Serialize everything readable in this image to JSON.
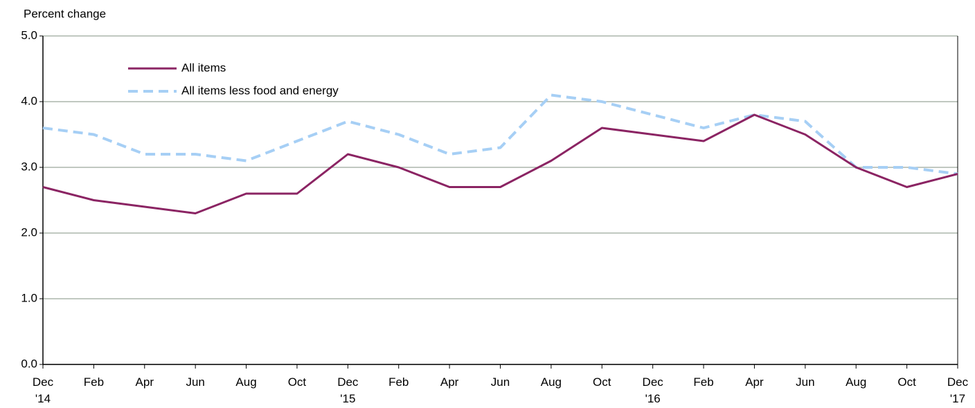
{
  "chart_data": {
    "type": "line",
    "y_label": "Percent change",
    "categories": [
      "Dec\n'14",
      "Feb",
      "Apr",
      "Jun",
      "Aug",
      "Oct",
      "Dec\n'15",
      "Feb",
      "Apr",
      "Jun",
      "Aug",
      "Oct",
      "Dec\n'16",
      "Feb",
      "Apr",
      "Jun",
      "Aug",
      "Oct",
      "Dec\n'17"
    ],
    "series": [
      {
        "name": "All items",
        "color": "#8b2463",
        "dashed": false,
        "values": [
          2.7,
          2.5,
          2.4,
          2.3,
          2.6,
          2.6,
          3.2,
          3.0,
          2.7,
          2.7,
          3.1,
          3.6,
          3.5,
          3.4,
          3.8,
          3.5,
          3.0,
          2.7,
          2.9
        ]
      },
      {
        "name": "All items less food and energy",
        "color": "#a6cff5",
        "dashed": true,
        "values": [
          3.6,
          3.5,
          3.2,
          3.2,
          3.1,
          3.4,
          3.7,
          3.5,
          3.2,
          3.3,
          4.1,
          4.0,
          3.8,
          3.6,
          3.8,
          3.7,
          3.0,
          3.0,
          2.9
        ]
      }
    ],
    "ylim": [
      0,
      5
    ],
    "yticks": [
      {
        "value": 0,
        "label": "0.0"
      },
      {
        "value": 1,
        "label": "1.0"
      },
      {
        "value": 2,
        "label": "2.0"
      },
      {
        "value": 3,
        "label": "3.0"
      },
      {
        "value": 4,
        "label": "4.0"
      },
      {
        "value": 5,
        "label": "5.0"
      }
    ],
    "grid": true
  }
}
